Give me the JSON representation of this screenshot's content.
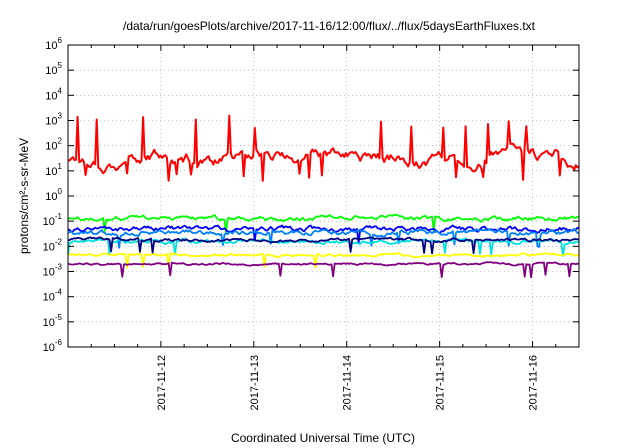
{
  "chart_data": {
    "type": "line",
    "title": "/data/run/goesPlots/archive/2017-11-16/12:00/flux/../flux/5daysEarthFluxes.txt",
    "xlabel": "Coordinated Universal Time (UTC)",
    "ylabel": "protons/cm²-s-sr-MeV",
    "y_scale": "log",
    "ylim_exponents": [
      -6,
      6
    ],
    "y_ticks": [
      "10^-6",
      "10^-5",
      "10^-4",
      "10^-3",
      "10^-2",
      "10^-1",
      "10^0",
      "10^1",
      "10^2",
      "10^3",
      "10^4",
      "10^5",
      "10^6"
    ],
    "x_ticks": [
      "2017-11-12",
      "2017-11-13",
      "2017-11-14",
      "2017-11-15",
      "2017-11-16"
    ],
    "xlim_days": [
      0,
      5.5
    ],
    "grid": true,
    "series": [
      {
        "color": "#ff0000",
        "level_exp": 1.5,
        "noise": 1.3,
        "spikes": true
      },
      {
        "color": "#00ff00",
        "level_exp": -0.9,
        "noise": 0.18
      },
      {
        "color": "#0000ff",
        "level_exp": -1.3,
        "noise": 0.2
      },
      {
        "color": "#0080ff",
        "level_exp": -1.45,
        "noise": 0.2
      },
      {
        "color": "#00e0e0",
        "level_exp": -1.8,
        "noise": 0.15
      },
      {
        "color": "#000080",
        "level_exp": -1.75,
        "noise": 0.12
      },
      {
        "color": "#ffff00",
        "level_exp": -2.35,
        "noise": 0.1
      },
      {
        "color": "#800080",
        "level_exp": -2.7,
        "noise": 0.08
      }
    ]
  }
}
